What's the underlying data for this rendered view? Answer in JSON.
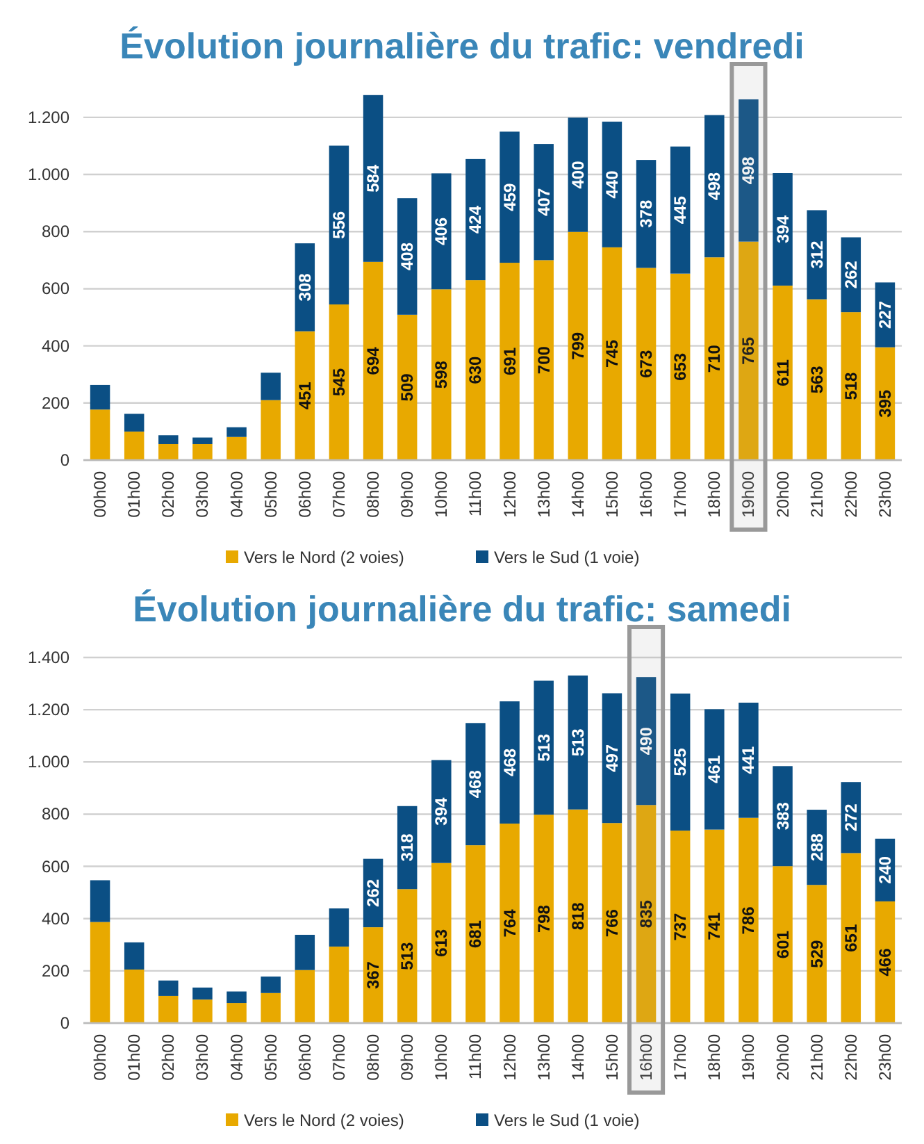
{
  "chart_data": [
    {
      "type": "bar",
      "title": "Évolution journalière du trafic: vendredi",
      "stacked": true,
      "categories": [
        "00h00",
        "01h00",
        "02h00",
        "03h00",
        "04h00",
        "05h00",
        "06h00",
        "07h00",
        "08h00",
        "09h00",
        "10h00",
        "11h00",
        "12h00",
        "13h00",
        "14h00",
        "15h00",
        "16h00",
        "17h00",
        "18h00",
        "19h00",
        "20h00",
        "21h00",
        "22h00",
        "23h00"
      ],
      "series": [
        {
          "name": "Vers le Nord (2 voies)",
          "color": "#e8a900",
          "values": [
            177,
            100,
            56,
            56,
            81,
            210,
            451,
            545,
            694,
            509,
            598,
            630,
            691,
            700,
            799,
            745,
            673,
            653,
            710,
            765,
            611,
            563,
            518,
            395
          ],
          "value_labels": [
            null,
            null,
            null,
            null,
            null,
            null,
            "451",
            "545",
            "694",
            "509",
            "598",
            "630",
            "691",
            "700",
            "799",
            "745",
            "673",
            "653",
            "710",
            "765",
            "611",
            "563",
            "518",
            "395"
          ]
        },
        {
          "name": "Vers le Sud (1 voie)",
          "color": "#0b4f84",
          "values": [
            86,
            62,
            31,
            23,
            34,
            96,
            308,
            556,
            584,
            408,
            406,
            424,
            459,
            407,
            400,
            440,
            378,
            445,
            498,
            498,
            394,
            312,
            262,
            227
          ],
          "value_labels": [
            null,
            null,
            null,
            null,
            null,
            null,
            "308",
            "556",
            "584",
            "408",
            "406",
            "424",
            "459",
            "407",
            "400",
            "440",
            "378",
            "445",
            "498",
            "498",
            "394",
            "312",
            "262",
            "227"
          ]
        }
      ],
      "ylim": [
        0,
        1280
      ],
      "yticks": [
        0,
        200,
        400,
        600,
        800,
        {
          "value": 1000,
          "label": "1.000"
        },
        {
          "value": 1200,
          "label": "1.200"
        }
      ],
      "grid": "y",
      "legend": "bottom",
      "bands": [
        {
          "axis": "x",
          "from": "19h00",
          "to": "19h00",
          "color": "#999999"
        }
      ]
    },
    {
      "type": "bar",
      "title": "Évolution journalière du trafic: samedi",
      "stacked": true,
      "categories": [
        "00h00",
        "01h00",
        "02h00",
        "03h00",
        "04h00",
        "05h00",
        "06h00",
        "07h00",
        "08h00",
        "09h00",
        "10h00",
        "11h00",
        "12h00",
        "13h00",
        "14h00",
        "15h00",
        "16h00",
        "17h00",
        "18h00",
        "19h00",
        "20h00",
        "21h00",
        "22h00",
        "23h00"
      ],
      "series": [
        {
          "name": "Vers le Nord (2 voies)",
          "color": "#e8a900",
          "values": [
            387,
            205,
            104,
            90,
            77,
            115,
            203,
            293,
            367,
            513,
            613,
            681,
            764,
            798,
            818,
            766,
            835,
            737,
            741,
            786,
            601,
            529,
            651,
            466
          ],
          "value_labels": [
            null,
            null,
            null,
            null,
            null,
            null,
            null,
            null,
            "367",
            "513",
            "613",
            "681",
            "764",
            "798",
            "818",
            "766",
            "835",
            "737",
            "741",
            "786",
            "601",
            "529",
            "651",
            "466"
          ]
        },
        {
          "name": "Vers le Sud (1 voie)",
          "color": "#0b4f84",
          "values": [
            160,
            104,
            59,
            46,
            44,
            63,
            135,
            146,
            262,
            318,
            394,
            468,
            468,
            513,
            513,
            497,
            490,
            525,
            461,
            441,
            383,
            288,
            272,
            240
          ],
          "value_labels": [
            null,
            null,
            null,
            null,
            null,
            null,
            null,
            null,
            "262",
            "318",
            "394",
            "468",
            "468",
            "513",
            "513",
            "497",
            "490",
            "525",
            "461",
            "441",
            "383",
            "288",
            "272",
            "240"
          ]
        }
      ],
      "ylim": [
        0,
        1400
      ],
      "yticks": [
        0,
        200,
        400,
        600,
        800,
        {
          "value": 1000,
          "label": "1.000"
        },
        {
          "value": 1200,
          "label": "1.200"
        },
        {
          "value": 1400,
          "label": "1.400"
        }
      ],
      "grid": "y",
      "legend": "bottom",
      "bands": [
        {
          "axis": "x",
          "from": "16h00",
          "to": "16h00",
          "color": "#999999"
        }
      ]
    }
  ]
}
